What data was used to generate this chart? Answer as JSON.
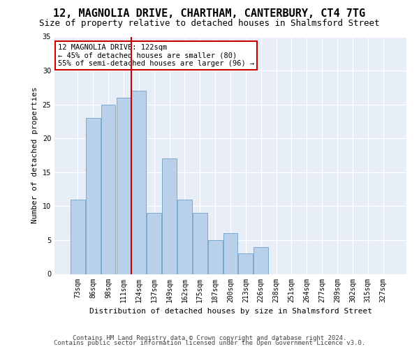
{
  "title1": "12, MAGNOLIA DRIVE, CHARTHAM, CANTERBURY, CT4 7TG",
  "title2": "Size of property relative to detached houses in Shalmsford Street",
  "xlabel": "Distribution of detached houses by size in Shalmsford Street",
  "ylabel": "Number of detached properties",
  "footnote1": "Contains HM Land Registry data © Crown copyright and database right 2024.",
  "footnote2": "Contains public sector information licensed under the Open Government Licence v3.0.",
  "categories": [
    "73sqm",
    "86sqm",
    "98sqm",
    "111sqm",
    "124sqm",
    "137sqm",
    "149sqm",
    "162sqm",
    "175sqm",
    "187sqm",
    "200sqm",
    "213sqm",
    "226sqm",
    "238sqm",
    "251sqm",
    "264sqm",
    "277sqm",
    "289sqm",
    "302sqm",
    "315sqm",
    "327sqm"
  ],
  "values": [
    11,
    23,
    25,
    26,
    27,
    9,
    17,
    11,
    9,
    5,
    6,
    3,
    4,
    0,
    0,
    0,
    0,
    0,
    0,
    0,
    0
  ],
  "bar_color": "#b8d0ea",
  "bar_edge_color": "#7aaace",
  "vline_color": "#cc0000",
  "vline_x_index": 3.5,
  "annotation_line1": "12 MAGNOLIA DRIVE: 122sqm",
  "annotation_line2": "← 45% of detached houses are smaller (80)",
  "annotation_line3": "55% of semi-detached houses are larger (96) →",
  "annotation_box_edgecolor": "#cc0000",
  "annotation_fill_color": "#ffffff",
  "ylim": [
    0,
    35
  ],
  "yticks": [
    0,
    5,
    10,
    15,
    20,
    25,
    30,
    35
  ],
  "bg_color": "#e8eef8",
  "grid_color": "#ffffff",
  "title1_fontsize": 11,
  "title2_fontsize": 9,
  "footnote_fontsize": 6.5,
  "axis_fontsize": 8,
  "tick_fontsize": 7,
  "annot_fontsize": 7.5
}
